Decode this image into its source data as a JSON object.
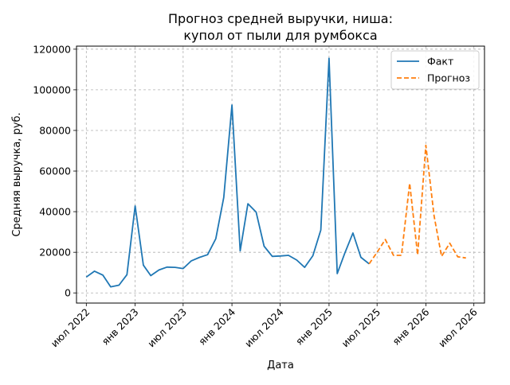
{
  "chart_data": {
    "type": "line",
    "title_lines": [
      "Прогноз средней выручки, ниша:",
      "купол от пыли для румбокса"
    ],
    "xlabel": "Дата",
    "ylabel": "Средняя выручка, руб.",
    "x_ticks": [
      "2022-07-01",
      "2023-01-01",
      "2023-07-01",
      "2024-01-01",
      "2024-07-01",
      "2025-01-01",
      "2025-07-01",
      "2026-01-01",
      "2026-07-01"
    ],
    "x_tick_labels": [
      "июл 2022",
      "янв 2023",
      "июл 2023",
      "янв 2024",
      "июл 2024",
      "янв 2025",
      "июл 2025",
      "янв 2026",
      "июл 2026"
    ],
    "y_ticks": [
      0,
      20000,
      40000,
      60000,
      80000,
      100000,
      120000
    ],
    "y_tick_labels": [
      "0",
      "20000",
      "40000",
      "60000",
      "80000",
      "100000",
      "120000"
    ],
    "xlim": [
      "2022-05-25",
      "2026-08-10"
    ],
    "ylim": [
      -5000,
      121500
    ],
    "grid": true,
    "legend_position": "top-right",
    "series": [
      {
        "name": "Факт",
        "color": "#1f77b4",
        "style": "solid",
        "points": [
          [
            "2022-07-01",
            7800
          ],
          [
            "2022-08-01",
            10700
          ],
          [
            "2022-09-01",
            8800
          ],
          [
            "2022-10-01",
            3000
          ],
          [
            "2022-11-01",
            3800
          ],
          [
            "2022-12-01",
            9000
          ],
          [
            "2023-01-01",
            42800
          ],
          [
            "2023-02-01",
            13700
          ],
          [
            "2023-03-01",
            8500
          ],
          [
            "2023-04-01",
            11300
          ],
          [
            "2023-05-01",
            12700
          ],
          [
            "2023-06-01",
            12600
          ],
          [
            "2023-07-01",
            12000
          ],
          [
            "2023-08-01",
            15800
          ],
          [
            "2023-09-01",
            17500
          ],
          [
            "2023-10-01",
            18800
          ],
          [
            "2023-11-01",
            26700
          ],
          [
            "2023-12-01",
            47000
          ],
          [
            "2024-01-01",
            92500
          ],
          [
            "2024-02-01",
            20700
          ],
          [
            "2024-03-01",
            43900
          ],
          [
            "2024-04-01",
            39800
          ],
          [
            "2024-05-01",
            23000
          ],
          [
            "2024-06-01",
            18000
          ],
          [
            "2024-07-01",
            18200
          ],
          [
            "2024-08-01",
            18500
          ],
          [
            "2024-09-01",
            16200
          ],
          [
            "2024-10-01",
            12600
          ],
          [
            "2024-11-01",
            18300
          ],
          [
            "2024-12-01",
            31000
          ],
          [
            "2025-01-01",
            115500
          ],
          [
            "2025-02-01",
            9500
          ],
          [
            "2025-03-01",
            19500
          ],
          [
            "2025-04-01",
            29500
          ],
          [
            "2025-05-01",
            17500
          ],
          [
            "2025-06-01",
            14300
          ]
        ]
      },
      {
        "name": "Прогноз",
        "color": "#ff7f0e",
        "style": "dashed",
        "points": [
          [
            "2025-06-01",
            14300
          ],
          [
            "2025-07-01",
            20000
          ],
          [
            "2025-08-01",
            26300
          ],
          [
            "2025-09-01",
            18500
          ],
          [
            "2025-10-01",
            18500
          ],
          [
            "2025-11-01",
            54000
          ],
          [
            "2025-12-01",
            18700
          ],
          [
            "2026-01-01",
            72700
          ],
          [
            "2026-02-01",
            38000
          ],
          [
            "2026-03-01",
            18000
          ],
          [
            "2026-04-01",
            24500
          ],
          [
            "2026-05-01",
            17800
          ],
          [
            "2026-06-01",
            17200
          ]
        ]
      }
    ]
  }
}
